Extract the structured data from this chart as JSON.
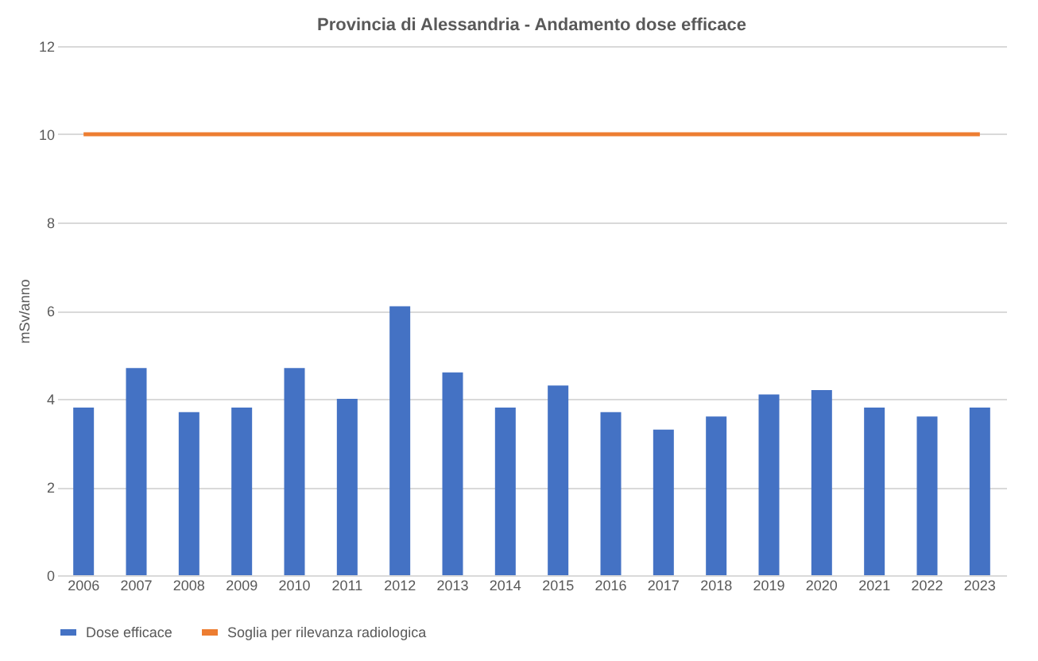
{
  "chart_data": {
    "type": "bar",
    "title": "Provincia di Alessandria - Andamento dose efficace",
    "ylabel": "mSv/anno",
    "categories": [
      "2006",
      "2007",
      "2008",
      "2009",
      "2010",
      "2011",
      "2012",
      "2013",
      "2014",
      "2015",
      "2016",
      "2017",
      "2018",
      "2019",
      "2020",
      "2021",
      "2022",
      "2023"
    ],
    "series": [
      {
        "name": "Dose efficace",
        "color": "#4472c4",
        "values": [
          3.8,
          4.7,
          3.7,
          3.8,
          4.7,
          4.0,
          6.1,
          4.6,
          3.8,
          4.3,
          3.7,
          3.3,
          3.6,
          4.1,
          4.2,
          3.8,
          3.6,
          3.8
        ]
      },
      {
        "name": "Soglia per rilevanza radiologica",
        "type": "line",
        "color": "#ed7d31",
        "values": [
          10,
          10,
          10,
          10,
          10,
          10,
          10,
          10,
          10,
          10,
          10,
          10,
          10,
          10,
          10,
          10,
          10,
          10
        ]
      }
    ],
    "ylim": [
      0,
      12
    ],
    "yticks": [
      0,
      2,
      4,
      6,
      8,
      10,
      12
    ],
    "grid": "y",
    "legend": "bottom"
  }
}
